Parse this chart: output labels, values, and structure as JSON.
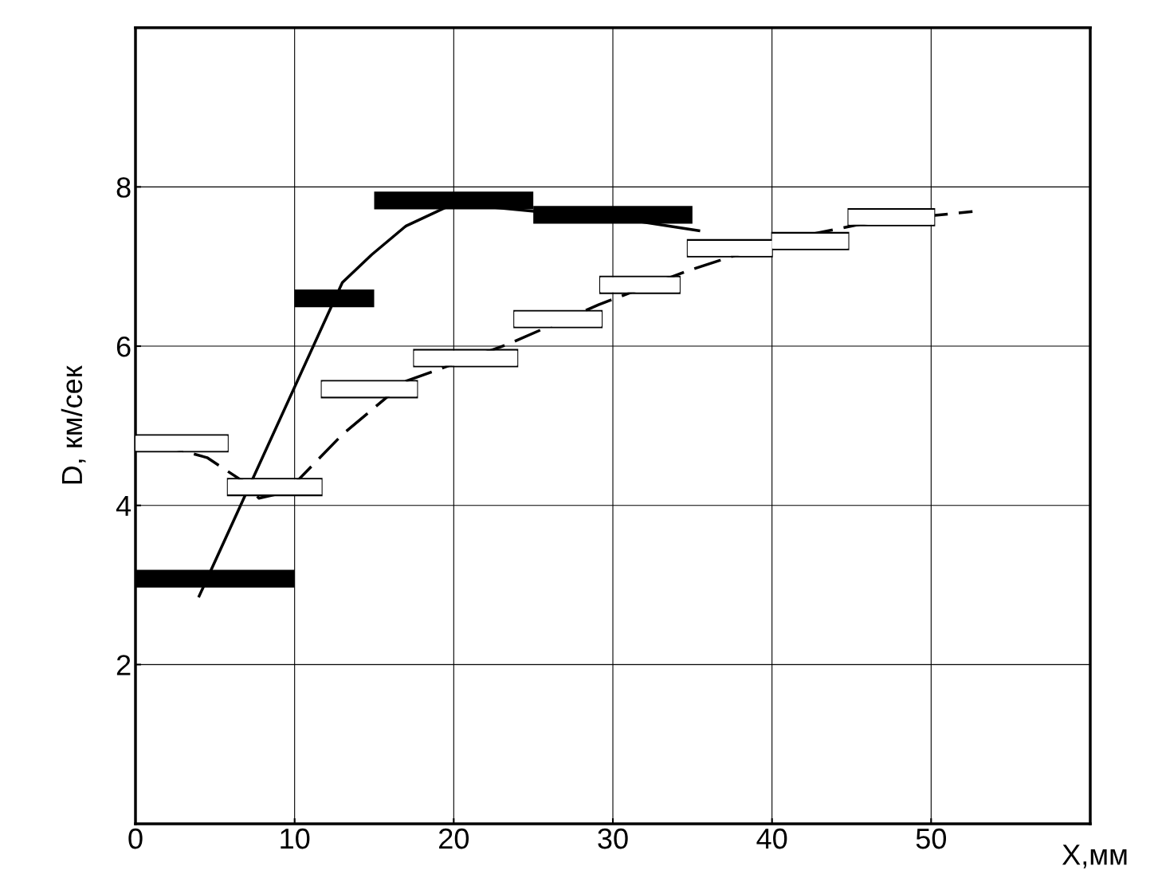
{
  "chart_data": {
    "type": "line",
    "xlabel": "X,мм",
    "ylabel": "D, км/сек",
    "xlim": [
      0,
      60
    ],
    "xticks": [
      0,
      10,
      20,
      30,
      40,
      50
    ],
    "ylim": [
      0,
      10
    ],
    "yticks": [
      2,
      4,
      6,
      8
    ],
    "grid": true,
    "legend": false,
    "series": [
      {
        "type": "step",
        "color": "#000000",
        "line_style": "solid",
        "x": [
          0,
          10
        ],
        "values": [
          3.08,
          3.08
        ]
      },
      {
        "type": "step",
        "color": "#000000",
        "line_style": "solid",
        "x": [
          10,
          15
        ],
        "values": [
          6.6,
          6.6
        ]
      },
      {
        "type": "step",
        "color": "#000000",
        "line_style": "solid",
        "x": [
          15,
          25
        ],
        "values": [
          7.83,
          7.83
        ]
      },
      {
        "type": "step",
        "color": "#000000",
        "line_style": "solid",
        "x": [
          25,
          35
        ],
        "values": [
          7.65,
          7.65
        ]
      },
      {
        "type": "step",
        "color": "#ffffff",
        "line_style": "solid",
        "x": [
          0,
          5.8
        ],
        "values": [
          4.78,
          4.78
        ]
      },
      {
        "type": "step",
        "color": "#ffffff",
        "line_style": "solid",
        "x": [
          5.8,
          11.7
        ],
        "values": [
          4.23,
          4.23
        ]
      },
      {
        "type": "step",
        "color": "#ffffff",
        "line_style": "solid",
        "x": [
          11.7,
          17.7
        ],
        "values": [
          5.46,
          5.46
        ]
      },
      {
        "type": "step",
        "color": "#ffffff",
        "line_style": "solid",
        "x": [
          17.5,
          24
        ],
        "values": [
          5.85,
          5.85
        ]
      },
      {
        "type": "step",
        "color": "#ffffff",
        "line_style": "solid",
        "x": [
          23.8,
          29.3
        ],
        "values": [
          6.34,
          6.34
        ]
      },
      {
        "type": "step",
        "color": "#ffffff",
        "line_style": "solid",
        "x": [
          29.2,
          34.2
        ],
        "values": [
          6.77,
          6.77
        ]
      },
      {
        "type": "step",
        "color": "#ffffff",
        "line_style": "solid",
        "x": [
          34.7,
          40
        ],
        "values": [
          7.23,
          7.23
        ]
      },
      {
        "type": "step",
        "color": "#ffffff",
        "line_style": "solid",
        "x": [
          40,
          44.8
        ],
        "values": [
          7.32,
          7.32
        ]
      },
      {
        "type": "step",
        "color": "#ffffff",
        "line_style": "solid",
        "x": [
          44.8,
          50.2
        ],
        "values": [
          7.62,
          7.62
        ]
      },
      {
        "color": "#000000",
        "line_style": "solid",
        "x": [
          4,
          13,
          14.85,
          17,
          20,
          31.5,
          35.4
        ],
        "values": [
          2.86,
          6.8,
          7.15,
          7.51,
          7.79,
          7.57,
          7.45
        ]
      },
      {
        "color": "#000000",
        "line_style": "dashed",
        "x": [
          0,
          4.5,
          7,
          7.75,
          9.5,
          13,
          17,
          23.35,
          29.1,
          34.75,
          40.6,
          46.5,
          52.6
        ],
        "values": [
          4.85,
          4.6,
          4.27,
          4.09,
          4.17,
          4.89,
          5.56,
          6.02,
          6.52,
          6.95,
          7.33,
          7.57,
          7.69
        ]
      }
    ]
  }
}
